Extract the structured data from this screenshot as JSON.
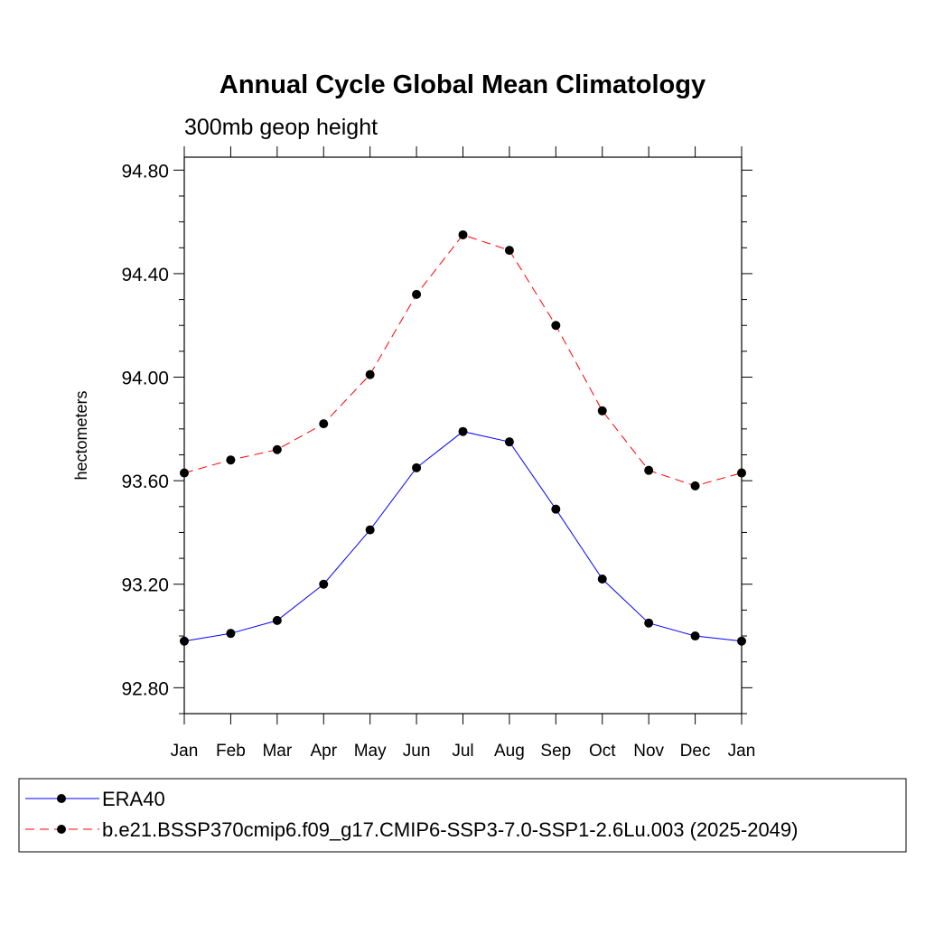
{
  "chart_data": {
    "type": "line",
    "title": "Annual Cycle Global Mean Climatology",
    "subtitle": "300mb geop height",
    "xlabel": "",
    "ylabel": "hectometers",
    "categories": [
      "Jan",
      "Feb",
      "Mar",
      "Apr",
      "May",
      "Jun",
      "Jul",
      "Aug",
      "Sep",
      "Oct",
      "Nov",
      "Dec",
      "Jan"
    ],
    "ylim": [
      92.7,
      94.85
    ],
    "yticks": [
      "92.80",
      "93.20",
      "93.60",
      "94.00",
      "94.40",
      "94.80"
    ],
    "grid": false,
    "legend_position": "bottom",
    "series": [
      {
        "name": "ERA40",
        "color": "#0000ff",
        "line_style": "solid",
        "values": [
          92.98,
          93.01,
          93.06,
          93.2,
          93.41,
          93.65,
          93.79,
          93.75,
          93.49,
          93.22,
          93.05,
          93.0,
          92.98
        ]
      },
      {
        "name": "b.e21.BSSP370cmip6.f09_g17.CMIP6-SSP3-7.0-SSP1-2.6Lu.003 (2025-2049)",
        "color": "#ff0000",
        "line_style": "dashed",
        "values": [
          93.63,
          93.68,
          93.72,
          93.82,
          94.01,
          94.32,
          94.55,
          94.49,
          94.2,
          93.87,
          93.64,
          93.58,
          93.63
        ]
      }
    ]
  }
}
